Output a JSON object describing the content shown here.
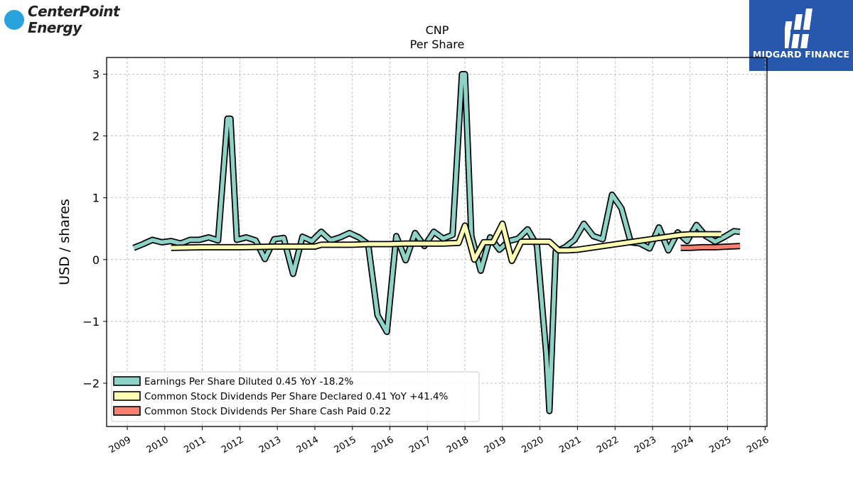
{
  "logos": {
    "left_line1": "CenterPoint",
    "left_line2": "Energy",
    "right_brand": "MIDGARD FINANCE"
  },
  "chart_data": {
    "type": "line",
    "title": "CNP",
    "subtitle": "Per  Share",
    "ylabel": "USD / shares",
    "xlabel": "",
    "xlim": [
      2008.45,
      2026.05
    ],
    "ylim": [
      -2.7,
      3.27
    ],
    "grid": true,
    "legend_position": "lower-left",
    "x_ticks": [
      2009,
      2010,
      2011,
      2012,
      2013,
      2014,
      2015,
      2016,
      2017,
      2018,
      2019,
      2020,
      2021,
      2022,
      2023,
      2024,
      2025,
      2026
    ],
    "y_ticks": [
      3,
      2,
      1,
      0,
      -1,
      -2
    ],
    "y_tick_labels": [
      "3",
      "2",
      "1",
      "0",
      "−1",
      "−2"
    ],
    "series": [
      {
        "name": "Earnings Per Share Diluted  0.45 YoY -18.2%",
        "color": "#8dd3c7",
        "x": [
          2009.17,
          2009.42,
          2009.67,
          2009.92,
          2010.17,
          2010.42,
          2010.67,
          2010.92,
          2011.17,
          2011.42,
          2011.67,
          2011.75,
          2011.92,
          2012.17,
          2012.42,
          2012.67,
          2012.92,
          2013.17,
          2013.42,
          2013.67,
          2013.92,
          2014.17,
          2014.42,
          2014.67,
          2014.92,
          2015.17,
          2015.42,
          2015.67,
          2015.92,
          2016.17,
          2016.42,
          2016.67,
          2016.92,
          2017.17,
          2017.42,
          2017.67,
          2017.92,
          2018.0,
          2018.17,
          2018.42,
          2018.67,
          2018.92,
          2019.17,
          2019.42,
          2019.67,
          2019.92,
          2020.17,
          2020.25,
          2020.42,
          2020.67,
          2020.92,
          2021.17,
          2021.42,
          2021.67,
          2021.92,
          2022.17,
          2022.42,
          2022.67,
          2022.92,
          2023.17,
          2023.42,
          2023.67,
          2023.92,
          2024.17,
          2024.42,
          2024.67,
          2024.92,
          2025.17,
          2025.33
        ],
        "y": [
          0.19,
          0.25,
          0.32,
          0.28,
          0.3,
          0.26,
          0.32,
          0.32,
          0.36,
          0.31,
          2.28,
          2.28,
          0.32,
          0.36,
          0.31,
          0.01,
          0.33,
          0.35,
          -0.23,
          0.37,
          0.3,
          0.45,
          0.31,
          0.36,
          0.43,
          0.36,
          0.25,
          -0.9,
          -1.17,
          0.38,
          -0.01,
          0.43,
          0.22,
          0.45,
          0.34,
          0.4,
          3.0,
          3.0,
          0.38,
          -0.18,
          0.36,
          0.16,
          0.3,
          0.34,
          0.49,
          0.23,
          -1.55,
          -2.45,
          0.13,
          0.2,
          0.32,
          0.58,
          0.38,
          0.33,
          1.05,
          0.83,
          0.28,
          0.26,
          0.18,
          0.52,
          0.15,
          0.44,
          0.3,
          0.56,
          0.38,
          0.29,
          0.37,
          0.46,
          0.45
        ]
      },
      {
        "name": "Common Stock Dividends Per Share Declared  0.41 YoY +41.4%",
        "color": "#ffffb3",
        "x": [
          2010.17,
          2011.0,
          2012.0,
          2013.0,
          2014.0,
          2014.17,
          2015.0,
          2015.42,
          2016.0,
          2016.42,
          2017.0,
          2017.42,
          2017.83,
          2018.0,
          2018.25,
          2018.5,
          2018.75,
          2019.0,
          2019.25,
          2019.5,
          2019.75,
          2020.0,
          2020.25,
          2020.5,
          2020.75,
          2021.0,
          2023.75,
          2024.0,
          2024.83
        ],
        "y": [
          0.19,
          0.2,
          0.2,
          0.21,
          0.21,
          0.24,
          0.24,
          0.25,
          0.25,
          0.26,
          0.26,
          0.26,
          0.27,
          0.55,
          0.0,
          0.28,
          0.28,
          0.58,
          -0.02,
          0.29,
          0.29,
          0.29,
          0.29,
          0.15,
          0.15,
          0.16,
          0.4,
          0.41,
          0.41
        ]
      },
      {
        "name": "Common Stock Dividends Per Share Cash Paid  0.22",
        "color": "#fb8072",
        "x": [
          2023.75,
          2024.0,
          2024.33,
          2024.67,
          2025.0,
          2025.33
        ],
        "y": [
          0.19,
          0.19,
          0.2,
          0.2,
          0.21,
          0.22
        ]
      }
    ]
  }
}
